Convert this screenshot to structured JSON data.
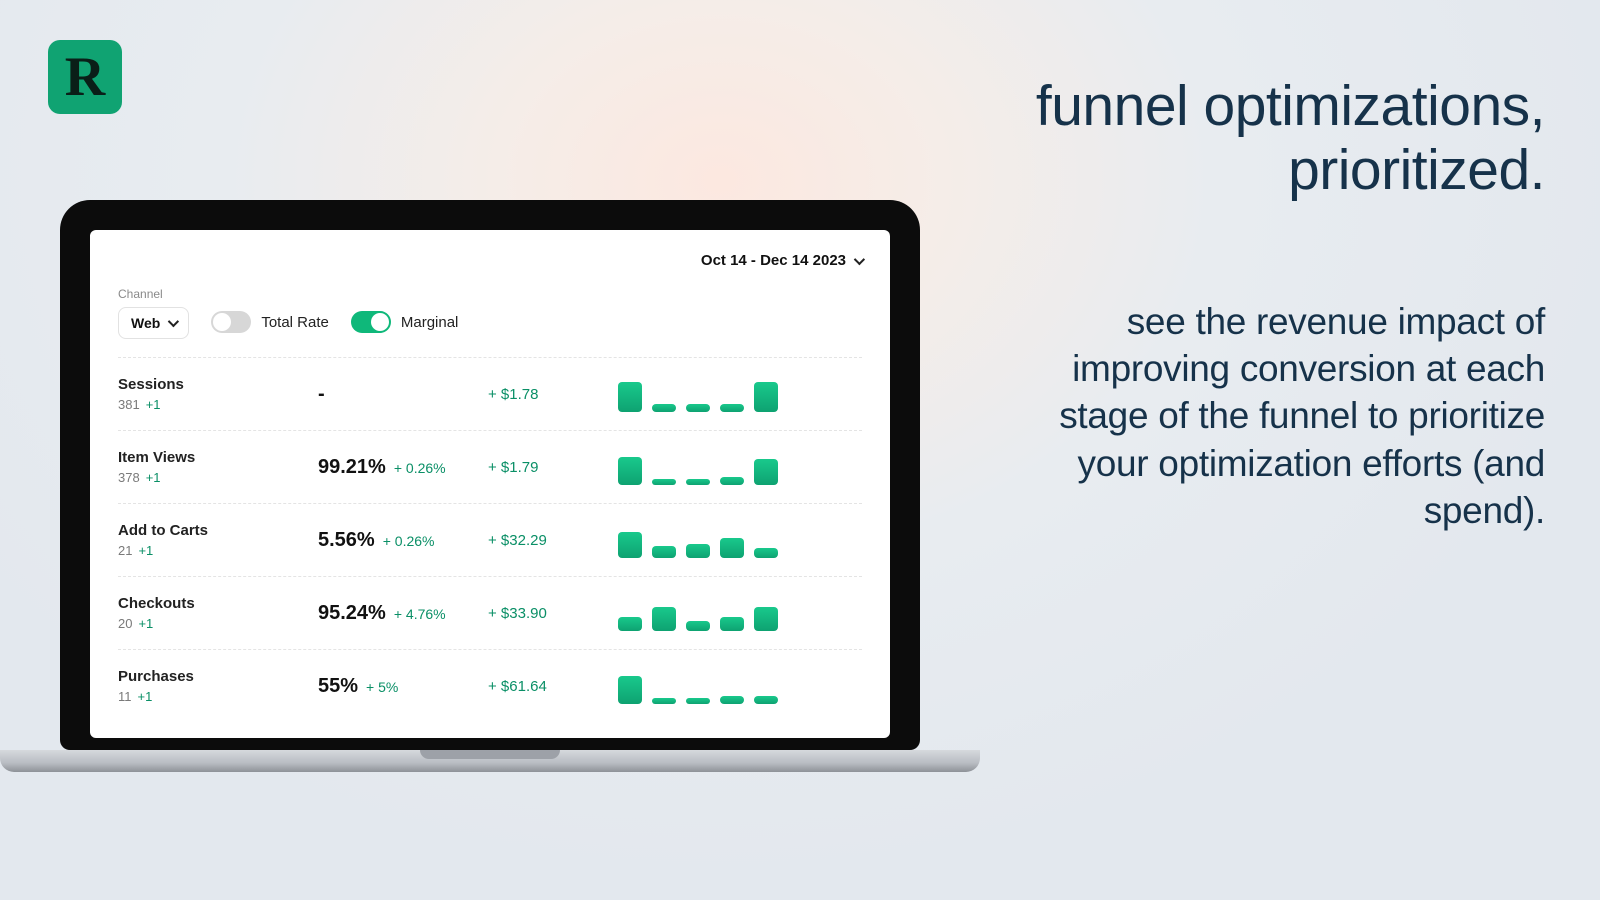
{
  "logo": {
    "letter": "R",
    "bg": "#10a372",
    "fg": "#0a1f18"
  },
  "marketing": {
    "headline_line1": "funnel optimizations,",
    "headline_line2": "prioritized.",
    "subhead": "see the revenue impact of improving conversion at each stage of the funnel to prioritize your optimization efforts (and spend).",
    "text_color": "#16324a",
    "headline_fontsize": 57,
    "subhead_fontsize": 37
  },
  "dashboard": {
    "date_range": "Oct 14 - Dec 14 2023",
    "channel_label": "Channel",
    "channel_value": "Web",
    "toggles": {
      "total_rate": {
        "label": "Total Rate",
        "on": false
      },
      "marginal": {
        "label": "Marginal",
        "on": true
      }
    },
    "colors": {
      "accent": "#0fb87a",
      "positive_text": "#0a8f66",
      "bar_gradient_top": "#19c98c",
      "bar_gradient_bottom": "#0ea271",
      "divider": "#e4e4e4",
      "muted_text": "#8a8a8a"
    },
    "rows": [
      {
        "title": "Sessions",
        "count": "381",
        "count_delta": "+1",
        "pct": "-",
        "pct_delta": "",
        "rev": "+ $1.78",
        "bars": [
          30,
          8,
          8,
          8,
          30
        ]
      },
      {
        "title": "Item Views",
        "count": "378",
        "count_delta": "+1",
        "pct": "99.21%",
        "pct_delta": "+ 0.26%",
        "rev": "+ $1.79",
        "bars": [
          28,
          6,
          6,
          8,
          26
        ]
      },
      {
        "title": "Add to Carts",
        "count": "21",
        "count_delta": "+1",
        "pct": "5.56%",
        "pct_delta": "+ 0.26%",
        "rev": "+ $32.29",
        "bars": [
          26,
          12,
          14,
          20,
          10
        ]
      },
      {
        "title": "Checkouts",
        "count": "20",
        "count_delta": "+1",
        "pct": "95.24%",
        "pct_delta": "+ 4.76%",
        "rev": "+ $33.90",
        "bars": [
          14,
          24,
          10,
          14,
          24
        ]
      },
      {
        "title": "Purchases",
        "count": "11",
        "count_delta": "+1",
        "pct": "55%",
        "pct_delta": "+ 5%",
        "rev": "+ $61.64",
        "bars": [
          28,
          6,
          6,
          8,
          8
        ]
      }
    ]
  }
}
